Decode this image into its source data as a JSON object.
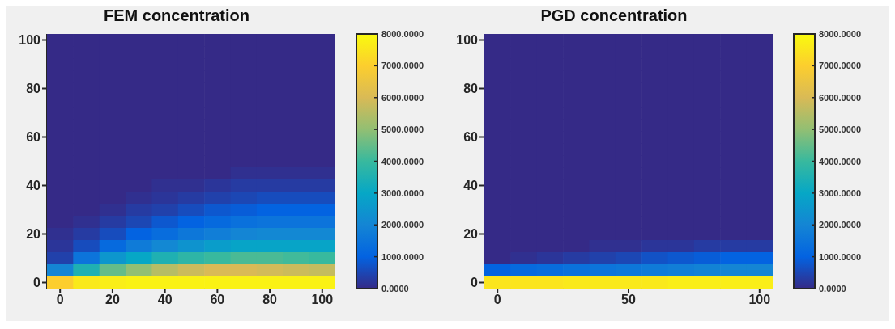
{
  "chart_data": [
    {
      "type": "heatmap",
      "title": "FEM concentration",
      "categories": [
        "0",
        null,
        "20",
        null,
        "40",
        null,
        "60",
        null,
        "80",
        null,
        "100"
      ],
      "y_categories": [
        "100",
        null,
        null,
        null,
        "80",
        null,
        null,
        null,
        "60",
        null,
        null,
        null,
        "40",
        null,
        null,
        null,
        "20",
        null,
        null,
        null,
        "0"
      ],
      "clim": [
        0,
        8000
      ],
      "cticks": [
        {
          "value": 0,
          "label": "0.0000"
        },
        {
          "value": 1000,
          "label": "1000.0000"
        },
        {
          "value": 2000,
          "label": "2000.0000"
        },
        {
          "value": 3000,
          "label": "3000.0000"
        },
        {
          "value": 4000,
          "label": "4000.0000"
        },
        {
          "value": 5000,
          "label": "5000.0000"
        },
        {
          "value": 6000,
          "label": "6000.0000"
        },
        {
          "value": 7000,
          "label": "7000.0000"
        },
        {
          "value": 8000,
          "label": "8000.0000"
        }
      ],
      "cells": [
        [
          0,
          0,
          0,
          0,
          0,
          0,
          0,
          0,
          0,
          0,
          0
        ],
        [
          0,
          0,
          0,
          0,
          0,
          0,
          0,
          0,
          0,
          0,
          0
        ],
        [
          0,
          0,
          0,
          0,
          0,
          0,
          0,
          0,
          0,
          0,
          0
        ],
        [
          0,
          0,
          0,
          0,
          0,
          0,
          0,
          0,
          0,
          0,
          0
        ],
        [
          0,
          0,
          0,
          0,
          0,
          0,
          0,
          0,
          0,
          0,
          0
        ],
        [
          0,
          0,
          0,
          0,
          0,
          0,
          0,
          0,
          0,
          0,
          0
        ],
        [
          0,
          0,
          0,
          0,
          0,
          0,
          0,
          0,
          0,
          0,
          0
        ],
        [
          0,
          0,
          0,
          0,
          0,
          0,
          0,
          0,
          0,
          0,
          0
        ],
        [
          0,
          0,
          0,
          0,
          0,
          0,
          0,
          0,
          0,
          0,
          0
        ],
        [
          0,
          0,
          0,
          0,
          0,
          0,
          0,
          0,
          0,
          0,
          0
        ],
        [
          0,
          0,
          0,
          0,
          0,
          0,
          0,
          0,
          0,
          0,
          0
        ],
        [
          0,
          0,
          0,
          0,
          0,
          0,
          0,
          100,
          100,
          100,
          100
        ],
        [
          0,
          0,
          0,
          0,
          100,
          100,
          200,
          300,
          300,
          300,
          300
        ],
        [
          0,
          0,
          0,
          100,
          200,
          300,
          400,
          500,
          600,
          600,
          600
        ],
        [
          0,
          0,
          100,
          300,
          400,
          600,
          800,
          900,
          1000,
          1000,
          1000
        ],
        [
          0,
          100,
          300,
          500,
          800,
          1000,
          1200,
          1400,
          1500,
          1500,
          1500
        ],
        [
          100,
          300,
          600,
          1000,
          1300,
          1600,
          1800,
          2000,
          2100,
          2100,
          2100
        ],
        [
          200,
          600,
          1200,
          1700,
          2100,
          2400,
          2700,
          2900,
          2900,
          2900,
          2900
        ],
        [
          400,
          1500,
          2500,
          3000,
          3500,
          3800,
          4000,
          4200,
          4200,
          4100,
          4000
        ],
        [
          2000,
          3500,
          4500,
          5000,
          5500,
          5800,
          6000,
          6000,
          5900,
          5800,
          5700
        ],
        [
          7000,
          7600,
          7700,
          7800,
          7800,
          7800,
          7800,
          7800,
          7800,
          7800,
          7800
        ]
      ]
    },
    {
      "type": "heatmap",
      "title": "PGD concentration",
      "categories": [
        "0",
        null,
        null,
        null,
        null,
        "50",
        null,
        null,
        null,
        null,
        "100"
      ],
      "y_categories": [
        "100",
        null,
        null,
        null,
        "80",
        null,
        null,
        null,
        "60",
        null,
        null,
        null,
        "40",
        null,
        null,
        null,
        "20",
        null,
        null,
        null,
        "0"
      ],
      "clim": [
        0,
        8000
      ],
      "cticks": [
        {
          "value": 0,
          "label": "0.0000"
        },
        {
          "value": 1000,
          "label": "1000.0000"
        },
        {
          "value": 2000,
          "label": "2000.0000"
        },
        {
          "value": 3000,
          "label": "3000.0000"
        },
        {
          "value": 4000,
          "label": "4000.0000"
        },
        {
          "value": 5000,
          "label": "5000.0000"
        },
        {
          "value": 6000,
          "label": "6000.0000"
        },
        {
          "value": 7000,
          "label": "7000.0000"
        },
        {
          "value": 8000,
          "label": "8000.0000"
        }
      ],
      "cells": [
        [
          0,
          0,
          0,
          0,
          0,
          0,
          0,
          0,
          0,
          0,
          0
        ],
        [
          0,
          0,
          0,
          0,
          0,
          0,
          0,
          0,
          0,
          0,
          0
        ],
        [
          0,
          0,
          0,
          0,
          0,
          0,
          0,
          0,
          0,
          0,
          0
        ],
        [
          0,
          0,
          0,
          0,
          0,
          0,
          0,
          0,
          0,
          0,
          0
        ],
        [
          0,
          0,
          0,
          0,
          0,
          0,
          0,
          0,
          0,
          0,
          0
        ],
        [
          0,
          0,
          0,
          0,
          0,
          0,
          0,
          0,
          0,
          0,
          0
        ],
        [
          0,
          0,
          0,
          0,
          0,
          0,
          0,
          0,
          0,
          0,
          0
        ],
        [
          0,
          0,
          0,
          0,
          0,
          0,
          0,
          0,
          0,
          0,
          0
        ],
        [
          0,
          0,
          0,
          0,
          0,
          0,
          0,
          0,
          0,
          0,
          0
        ],
        [
          0,
          0,
          0,
          0,
          0,
          0,
          0,
          0,
          0,
          0,
          0
        ],
        [
          0,
          0,
          0,
          0,
          0,
          0,
          0,
          0,
          0,
          0,
          0
        ],
        [
          0,
          0,
          0,
          0,
          0,
          0,
          0,
          0,
          0,
          0,
          0
        ],
        [
          0,
          0,
          0,
          0,
          0,
          0,
          0,
          0,
          0,
          0,
          0
        ],
        [
          0,
          0,
          0,
          0,
          0,
          0,
          0,
          0,
          0,
          0,
          0
        ],
        [
          0,
          0,
          0,
          0,
          0,
          0,
          0,
          0,
          0,
          0,
          0
        ],
        [
          0,
          0,
          0,
          0,
          0,
          0,
          0,
          0,
          0,
          0,
          0
        ],
        [
          0,
          0,
          0,
          0,
          0,
          0,
          0,
          0,
          0,
          0,
          0
        ],
        [
          0,
          0,
          0,
          0,
          100,
          100,
          200,
          200,
          300,
          300,
          300
        ],
        [
          0,
          100,
          200,
          300,
          400,
          500,
          700,
          800,
          900,
          1000,
          1000
        ],
        [
          1000,
          1200,
          1300,
          1400,
          1500,
          1600,
          1700,
          1800,
          1900,
          2000,
          2000
        ],
        [
          7500,
          7500,
          7500,
          7600,
          7600,
          7600,
          7600,
          7700,
          7700,
          7700,
          7700
        ]
      ]
    }
  ]
}
